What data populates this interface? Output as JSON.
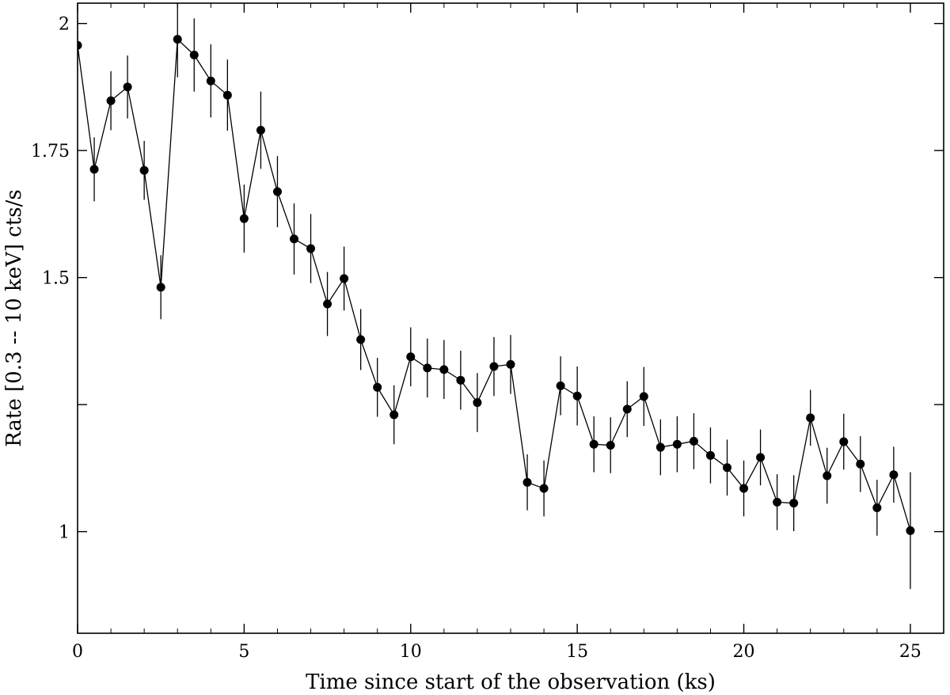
{
  "chart_data": {
    "type": "scatter",
    "title": "",
    "xlabel": "Time since start of the observation (ks)",
    "ylabel": "Rate [0.3 -- 10 keV] cts/s",
    "xlim": [
      0,
      26
    ],
    "ylim": [
      0.8,
      2.04
    ],
    "x_ticks": [
      0,
      5,
      10,
      15,
      20,
      25
    ],
    "x_tick_labels": [
      "0",
      "5",
      "10",
      "15",
      "20",
      "25"
    ],
    "y_ticks": [
      1,
      1.25,
      1.5,
      1.75,
      2
    ],
    "y_tick_labels": [
      "1",
      "",
      "1.5",
      "1.75",
      "2"
    ],
    "grid": false,
    "legend": "none",
    "marker_color": "#000000",
    "line_color": "#000000",
    "series": [
      {
        "x": [
          0,
          0.5,
          1,
          1.5,
          2,
          2.5,
          3,
          3.5,
          4,
          4.5,
          5,
          5.5,
          6,
          6.5,
          7,
          7.5,
          8,
          8.5,
          9,
          9.5,
          10,
          10.5,
          11,
          11.5,
          12,
          12.5,
          13,
          13.5,
          14,
          14.5,
          15,
          15.5,
          16,
          16.5,
          17,
          17.5,
          18,
          18.5,
          19,
          19.5,
          20,
          20.5,
          21,
          21.5,
          22,
          22.5,
          23,
          23.5,
          24,
          24.5,
          25
        ],
        "y": [
          1.957,
          1.713,
          1.848,
          1.875,
          1.711,
          1.481,
          1.969,
          1.938,
          1.887,
          1.859,
          1.616,
          1.79,
          1.669,
          1.576,
          1.557,
          1.448,
          1.498,
          1.378,
          1.284,
          1.23,
          1.344,
          1.322,
          1.319,
          1.298,
          1.254,
          1.325,
          1.329,
          1.097,
          1.085,
          1.287,
          1.267,
          1.172,
          1.17,
          1.241,
          1.266,
          1.166,
          1.172,
          1.178,
          1.15,
          1.126,
          1.085,
          1.146,
          1.058,
          1.056,
          1.224,
          1.11,
          1.177,
          1.133,
          1.047,
          1.112,
          1.002
        ],
        "yerr": [
          0.055,
          0.063,
          0.058,
          0.062,
          0.058,
          0.063,
          0.075,
          0.072,
          0.072,
          0.07,
          0.067,
          0.076,
          0.07,
          0.07,
          0.068,
          0.063,
          0.063,
          0.06,
          0.058,
          0.058,
          0.058,
          0.058,
          0.058,
          0.058,
          0.058,
          0.058,
          0.058,
          0.055,
          0.055,
          0.058,
          0.058,
          0.055,
          0.055,
          0.055,
          0.058,
          0.055,
          0.055,
          0.055,
          0.055,
          0.055,
          0.055,
          0.055,
          0.055,
          0.055,
          0.055,
          0.055,
          0.055,
          0.055,
          0.055,
          0.055,
          0.115
        ]
      }
    ]
  }
}
